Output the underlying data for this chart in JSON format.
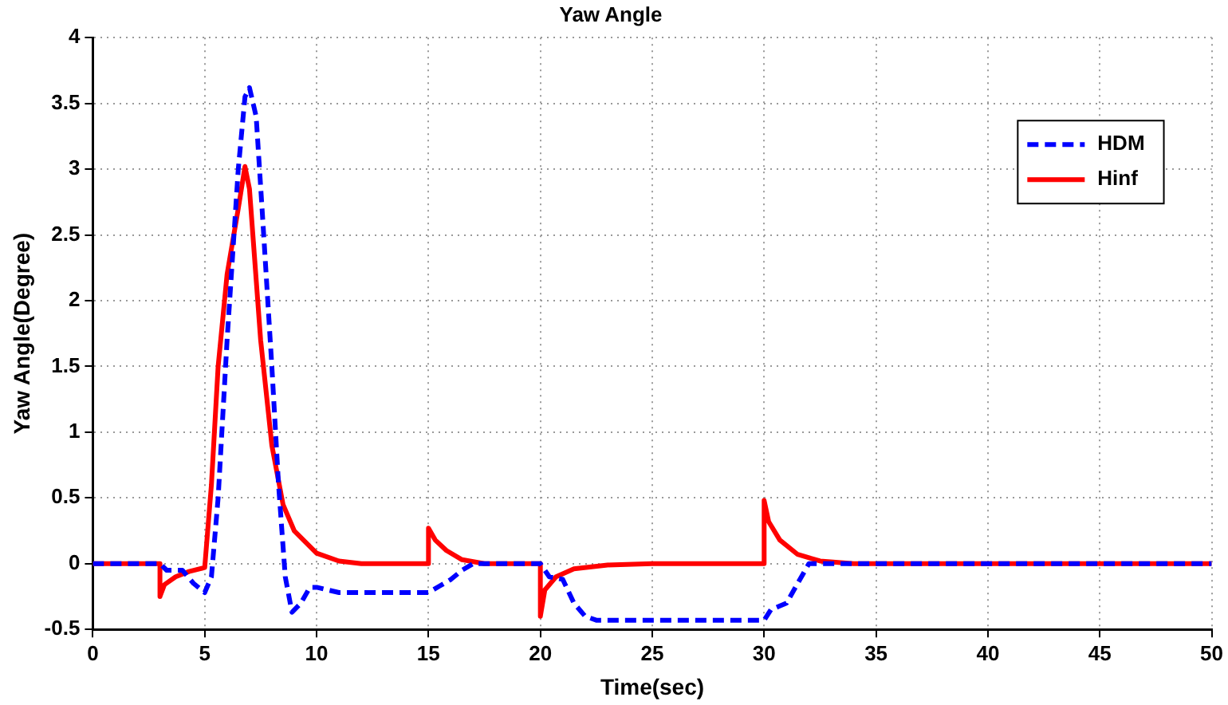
{
  "chart_data": {
    "type": "line",
    "title": "Yaw Angle",
    "xlabel": "Time(sec)",
    "ylabel": "Yaw Angle(Degree)",
    "xlim": [
      0,
      50
    ],
    "xticks": [
      0,
      5,
      10,
      15,
      20,
      25,
      30,
      35,
      40,
      45,
      50
    ],
    "ylim": [
      -0.5,
      4
    ],
    "yticks": [
      -0.5,
      0,
      0.5,
      1,
      1.5,
      2,
      2.5,
      3,
      3.5,
      4
    ],
    "grid": true,
    "legend": "top right",
    "marker": "none",
    "series": [
      {
        "name": "HDM",
        "color": "#0000ff",
        "line_style": "dashed",
        "x": [
          0,
          3,
          3.3,
          4,
          4.5,
          5,
          5.3,
          5.6,
          6,
          6.5,
          6.8,
          7,
          7.3,
          7.6,
          8,
          8.3,
          8.6,
          8.9,
          9.3,
          9.7,
          10,
          10.5,
          11,
          15,
          15.5,
          16,
          16.5,
          17,
          20,
          20.4,
          21,
          21.5,
          22,
          22.5,
          30,
          30.3,
          31,
          31.5,
          32,
          33,
          50
        ],
        "values": [
          0,
          0,
          -0.05,
          -0.05,
          -0.15,
          -0.22,
          -0.1,
          0.5,
          1.7,
          3,
          3.55,
          3.62,
          3.4,
          2.6,
          1.5,
          0.6,
          -0.1,
          -0.37,
          -0.3,
          -0.18,
          -0.18,
          -0.2,
          -0.22,
          -0.22,
          -0.17,
          -0.12,
          -0.05,
          0,
          0,
          -0.1,
          -0.12,
          -0.3,
          -0.4,
          -0.43,
          -0.43,
          -0.35,
          -0.3,
          -0.15,
          0,
          0,
          0
        ]
      },
      {
        "name": "Hinf",
        "color": "#ff0000",
        "line_style": "solid",
        "x": [
          0,
          3,
          3,
          3.2,
          3.7,
          4.3,
          5,
          5.3,
          5.6,
          6,
          6.5,
          6.8,
          7,
          7.5,
          8,
          8.5,
          9,
          10,
          11,
          12,
          15,
          15,
          15.3,
          15.8,
          16.5,
          17.5,
          20,
          20,
          20.2,
          20.7,
          21.5,
          23,
          25,
          30,
          30,
          30.2,
          30.7,
          31.5,
          32.5,
          34,
          50
        ],
        "values": [
          0,
          0,
          -0.25,
          -0.16,
          -0.1,
          -0.06,
          -0.03,
          0.6,
          1.5,
          2.2,
          2.7,
          3.02,
          2.85,
          1.7,
          0.9,
          0.45,
          0.25,
          0.08,
          0.02,
          0,
          0,
          0.27,
          0.18,
          0.1,
          0.03,
          0,
          0,
          -0.4,
          -0.2,
          -0.1,
          -0.04,
          -0.01,
          0,
          0,
          0.48,
          0.32,
          0.18,
          0.07,
          0.02,
          0,
          0
        ]
      }
    ]
  }
}
